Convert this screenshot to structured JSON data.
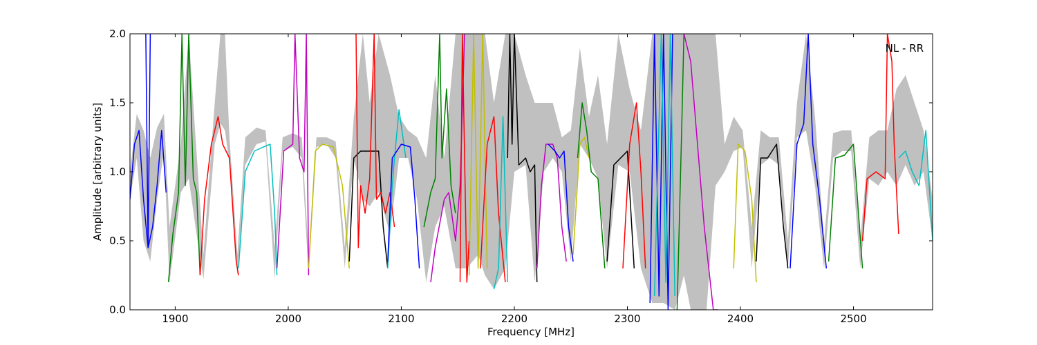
{
  "chart_data": {
    "type": "line",
    "title": "",
    "xlabel": "Frequency [MHz]",
    "ylabel": "Amplitude [arbitrary units]",
    "annotation": "NL - RR",
    "xlim": [
      1860,
      2570
    ],
    "ylim": [
      0.0,
      2.0
    ],
    "xticks": [
      1900,
      2000,
      2100,
      2200,
      2300,
      2400,
      2500
    ],
    "xtick_labels": [
      "1900",
      "2000",
      "2100",
      "2200",
      "2300",
      "2400",
      "2500"
    ],
    "yticks": [
      0.0,
      0.5,
      1.0,
      1.5,
      2.0
    ],
    "ytick_labels": [
      "0.0",
      "0.5",
      "1.0",
      "1.5",
      "2.0"
    ],
    "grid": false,
    "band": {
      "color": "#c0c0c0",
      "x": [
        1860,
        1866,
        1872,
        1878,
        1884,
        1890,
        1895,
        1905,
        1912,
        1918,
        1925,
        1935,
        1940,
        1944,
        1948,
        1955,
        1962,
        1972,
        1980,
        1988,
        1995,
        2004,
        2012,
        2018,
        2025,
        2034,
        2042,
        2050,
        2058,
        2066,
        2072,
        2080,
        2090,
        2098,
        2106,
        2114,
        2122,
        2130,
        2138,
        2148,
        2158,
        2168,
        2174,
        2182,
        2192,
        2200,
        2210,
        2218,
        2226,
        2234,
        2242,
        2250,
        2258,
        2266,
        2274,
        2282,
        2292,
        2302,
        2312,
        2322,
        2332,
        2342,
        2350,
        2356,
        2362,
        2370,
        2378,
        2386,
        2394,
        2402,
        2410,
        2418,
        2426,
        2434,
        2442,
        2450,
        2458,
        2466,
        2474,
        2482,
        2490,
        2498,
        2506,
        2514,
        2522,
        2530,
        2538,
        2546,
        2554,
        2562,
        2570
      ],
      "lower": [
        0.8,
        1.1,
        0.5,
        0.35,
        0.8,
        1.15,
        0.2,
        0.85,
        0.95,
        0.6,
        0.22,
        1.2,
        1.35,
        1.3,
        1.05,
        0.25,
        1.05,
        1.2,
        1.22,
        0.22,
        1.15,
        1.18,
        1.1,
        0.25,
        1.18,
        1.2,
        1.1,
        0.3,
        1.1,
        0.8,
        0.75,
        0.85,
        0.55,
        1.1,
        1.1,
        0.8,
        0.2,
        0.6,
        0.75,
        0.3,
        0.3,
        0.4,
        0.25,
        0.15,
        0.3,
        1.0,
        1.05,
        0.2,
        1.0,
        1.1,
        1.0,
        0.35,
        1.2,
        1.1,
        0.95,
        0.3,
        1.05,
        1.0,
        0.3,
        0.05,
        0.05,
        0.0,
        0.25,
        0.0,
        0.0,
        0.0,
        0.9,
        1.0,
        1.15,
        1.18,
        0.3,
        1.05,
        1.1,
        1.05,
        0.3,
        1.25,
        1.3,
        0.9,
        0.3,
        1.1,
        1.15,
        1.15,
        0.3,
        0.95,
        0.9,
        1.0,
        0.9,
        1.05,
        0.9,
        1.0,
        0.5
      ],
      "upper": [
        1.0,
        1.42,
        1.3,
        1.1,
        1.32,
        1.42,
        0.6,
        1.2,
        2.0,
        1.25,
        0.4,
        1.5,
        2.0,
        2.0,
        1.25,
        0.4,
        1.25,
        1.32,
        1.3,
        0.45,
        1.25,
        1.28,
        1.25,
        0.4,
        1.25,
        1.25,
        1.22,
        0.45,
        1.4,
        2.0,
        1.5,
        2.0,
        1.7,
        1.4,
        1.3,
        1.25,
        1.1,
        1.7,
        1.1,
        2.0,
        2.0,
        2.0,
        2.0,
        1.5,
        2.0,
        2.0,
        1.7,
        1.5,
        1.5,
        1.5,
        1.25,
        1.3,
        1.9,
        1.4,
        1.7,
        1.2,
        2.0,
        1.6,
        1.3,
        2.0,
        2.0,
        2.0,
        2.0,
        2.0,
        2.0,
        2.0,
        2.0,
        1.2,
        1.4,
        1.3,
        0.6,
        1.3,
        1.25,
        1.25,
        0.5,
        1.5,
        2.0,
        1.4,
        0.5,
        1.28,
        1.3,
        1.3,
        0.5,
        1.25,
        1.3,
        1.3,
        1.6,
        1.7,
        1.5,
        1.3,
        0.8
      ]
    },
    "series": [
      {
        "color": "#0000ff",
        "x": [
          1860,
          1864,
          1868,
          1872,
          1876,
          1880,
          1884,
          1888,
          1892
        ],
        "values": [
          0.8,
          1.2,
          1.3,
          0.8,
          0.45,
          0.6,
          0.9,
          1.3,
          0.85
        ]
      },
      {
        "color": "#0000ff",
        "x": [
          1874,
          1876,
          1878
        ],
        "values": [
          2.0,
          0.45,
          2.0
        ]
      },
      {
        "color": "#008000",
        "x": [
          1894,
          1898,
          1903,
          1906,
          1909,
          1912,
          1916,
          1919,
          1922
        ],
        "values": [
          0.2,
          0.55,
          0.85,
          2.0,
          0.9,
          2.0,
          0.95,
          0.85,
          0.25
        ]
      },
      {
        "color": "#ff0000",
        "x": [
          1922,
          1926,
          1932,
          1938,
          1942,
          1948,
          1954,
          1956
        ],
        "values": [
          0.25,
          0.8,
          1.2,
          1.4,
          1.2,
          1.1,
          0.35,
          0.25
        ]
      },
      {
        "color": "#00bfbf",
        "x": [
          1956,
          1962,
          1970,
          1978,
          1984,
          1988,
          1990
        ],
        "values": [
          0.3,
          1.0,
          1.15,
          1.18,
          1.2,
          0.7,
          0.25
        ]
      },
      {
        "color": "#bf00bf",
        "x": [
          1990,
          1996,
          2004,
          2006,
          2010,
          2014,
          2016,
          2018
        ],
        "values": [
          0.3,
          1.15,
          1.2,
          2.0,
          1.1,
          1.0,
          2.0,
          0.25
        ]
      },
      {
        "color": "#bfbf00",
        "x": [
          2018,
          2024,
          2030,
          2040,
          2048,
          2054
        ],
        "values": [
          0.3,
          1.15,
          1.2,
          1.18,
          0.9,
          0.3
        ]
      },
      {
        "color": "#000000",
        "x": [
          2054,
          2058,
          2064,
          2072,
          2080,
          2084,
          2088
        ],
        "values": [
          0.35,
          1.1,
          1.15,
          1.15,
          1.15,
          0.6,
          0.3
        ]
      },
      {
        "color": "#ff0000",
        "x": [
          2060,
          2062,
          2064,
          2068,
          2072,
          2076,
          2078,
          2082,
          2086,
          2090,
          2094
        ],
        "values": [
          2.0,
          0.45,
          0.9,
          0.7,
          0.95,
          2.0,
          0.8,
          0.85,
          0.7,
          0.85,
          0.6
        ]
      },
      {
        "color": "#00bfbf",
        "x": [
          2088,
          2092,
          2094,
          2098,
          2104
        ],
        "values": [
          0.3,
          0.9,
          1.1,
          1.45,
          1.1
        ]
      },
      {
        "color": "#0000ff",
        "x": [
          2088,
          2092,
          2100,
          2108,
          2112,
          2116
        ],
        "values": [
          0.35,
          1.1,
          1.2,
          1.18,
          0.8,
          0.3
        ]
      },
      {
        "color": "#008000",
        "x": [
          2120,
          2126,
          2130,
          2134,
          2136,
          2140,
          2144,
          2148
        ],
        "values": [
          0.6,
          0.85,
          0.95,
          2.0,
          1.1,
          1.6,
          0.9,
          0.7
        ]
      },
      {
        "color": "#bf00bf",
        "x": [
          2126,
          2130,
          2138,
          2142,
          2148,
          2152,
          2156
        ],
        "values": [
          0.2,
          0.45,
          0.8,
          0.85,
          0.5,
          0.9,
          2.0
        ]
      },
      {
        "color": "#ff0000",
        "x": [
          2152,
          2154,
          2158,
          2160
        ],
        "values": [
          0.2,
          2.0,
          0.2,
          0.5
        ]
      },
      {
        "color": "#bfbf00",
        "x": [
          2160,
          2164,
          2168,
          2172,
          2176
        ],
        "values": [
          0.25,
          2.0,
          0.3,
          2.0,
          0.3
        ]
      },
      {
        "color": "#ff0000",
        "x": [
          2170,
          2176,
          2182,
          2186,
          2192
        ],
        "values": [
          0.3,
          1.2,
          1.4,
          0.7,
          0.2
        ]
      },
      {
        "color": "#00bfbf",
        "x": [
          2182,
          2186,
          2190,
          2194
        ],
        "values": [
          0.15,
          0.3,
          1.4,
          0.2
        ]
      },
      {
        "color": "#000000",
        "x": [
          2194,
          2196,
          2198,
          2200,
          2204,
          2210,
          2214,
          2218,
          2220
        ],
        "values": [
          1.1,
          2.0,
          1.2,
          2.0,
          1.05,
          1.1,
          1.0,
          1.05,
          0.2
        ]
      },
      {
        "color": "#bf00bf",
        "x": [
          2220,
          2224,
          2228,
          2234,
          2238,
          2242,
          2246
        ],
        "values": [
          0.3,
          0.9,
          1.2,
          1.2,
          1.1,
          0.6,
          0.35
        ]
      },
      {
        "color": "#0000ff",
        "x": [
          2230,
          2236,
          2240,
          2244,
          2248,
          2252
        ],
        "values": [
          1.2,
          1.15,
          1.1,
          1.15,
          0.6,
          0.35
        ]
      },
      {
        "color": "#bfbf00",
        "x": [
          2252,
          2258,
          2262,
          2266
        ],
        "values": [
          0.4,
          1.2,
          1.25,
          1.1
        ]
      },
      {
        "color": "#008000",
        "x": [
          2256,
          2260,
          2264,
          2268,
          2274,
          2280
        ],
        "values": [
          1.1,
          1.5,
          1.3,
          1.0,
          0.95,
          0.3
        ]
      },
      {
        "color": "#000000",
        "x": [
          2282,
          2288,
          2294,
          2300,
          2306
        ],
        "values": [
          0.35,
          1.05,
          1.1,
          1.15,
          0.3
        ]
      },
      {
        "color": "#ff0000",
        "x": [
          2296,
          2302,
          2308,
          2312,
          2316
        ],
        "values": [
          0.3,
          1.2,
          1.5,
          1.0,
          0.3
        ]
      },
      {
        "color": "#0000ff",
        "x": [
          2320,
          2324,
          2328,
          2332,
          2336,
          2340
        ],
        "values": [
          0.05,
          2.0,
          0.1,
          2.0,
          0.0,
          2.0
        ]
      },
      {
        "color": "#00bfbf",
        "x": [
          2324,
          2330,
          2334,
          2338,
          2342
        ],
        "values": [
          0.1,
          2.0,
          0.2,
          2.0,
          0.1
        ]
      },
      {
        "color": "#008000",
        "x": [
          2344,
          2348,
          2350
        ],
        "values": [
          0.0,
          1.3,
          2.0
        ]
      },
      {
        "color": "#bf00bf",
        "x": [
          2350,
          2356,
          2362,
          2368,
          2376,
          2380
        ],
        "values": [
          2.0,
          1.8,
          1.2,
          0.6,
          0.0,
          0.0
        ]
      },
      {
        "color": "#bfbf00",
        "x": [
          2394,
          2398,
          2404,
          2410,
          2414
        ],
        "values": [
          0.3,
          1.2,
          1.15,
          0.8,
          0.2
        ]
      },
      {
        "color": "#000000",
        "x": [
          2414,
          2418,
          2424,
          2432,
          2438,
          2442
        ],
        "values": [
          0.35,
          1.1,
          1.1,
          1.2,
          0.6,
          0.3
        ]
      },
      {
        "color": "#0000ff",
        "x": [
          2444,
          2450,
          2456,
          2460,
          2464,
          2470,
          2476
        ],
        "values": [
          0.3,
          1.2,
          1.35,
          2.0,
          1.2,
          0.8,
          0.3
        ]
      },
      {
        "color": "#008000",
        "x": [
          2478,
          2484,
          2492,
          2500,
          2508
        ],
        "values": [
          0.35,
          1.1,
          1.12,
          1.2,
          0.3
        ]
      },
      {
        "color": "#ff0000",
        "x": [
          2508,
          2512,
          2520,
          2528,
          2530,
          2534,
          2536,
          2540
        ],
        "values": [
          0.5,
          0.95,
          1.0,
          0.95,
          2.0,
          1.8,
          1.2,
          0.55
        ]
      },
      {
        "color": "#00bfbf",
        "x": [
          2540,
          2546,
          2552,
          2558,
          2564,
          2570
        ],
        "values": [
          1.1,
          1.15,
          1.0,
          0.9,
          1.3,
          0.5
        ]
      }
    ]
  }
}
